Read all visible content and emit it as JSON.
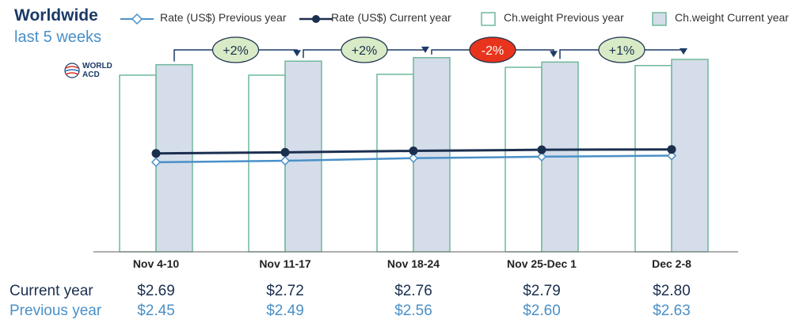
{
  "header": {
    "title": "Worldwide",
    "subtitle": "last 5 weeks",
    "logo_text_line1": "WORLD",
    "logo_text_line2": "ACD"
  },
  "legend": {
    "rate_prev": "Rate (US$) Previous year",
    "rate_cur": "Rate (US$) Current year",
    "weight_prev": "Ch.weight Previous year",
    "weight_cur": "Ch.weight Current year"
  },
  "table": {
    "current_label": "Current year",
    "previous_label": "Previous year",
    "current_values": [
      "$2.69",
      "$2.72",
      "$2.76",
      "$2.79",
      "$2.80"
    ],
    "previous_values": [
      "$2.45",
      "$2.49",
      "$2.56",
      "$2.60",
      "$2.63"
    ]
  },
  "colors": {
    "current_line": "#1b2f4f",
    "previous_line": "#4a90c8",
    "bar_prev_fill": "#ffffff",
    "bar_prev_stroke": "#6fb89a",
    "bar_cur_fill": "#d4dde9",
    "bar_cur_stroke": "#6fb89a",
    "badge_green": "#d8ebc6",
    "badge_red": "#e8341c",
    "arrow": "#1b3a66"
  },
  "chart_data": {
    "type": "bar",
    "categories": [
      "Nov 4-10",
      "Nov 11-17",
      "Nov 18-24",
      "Nov 25-Dec 1",
      "Dec 2-8"
    ],
    "series": [
      {
        "name": "Ch.weight Previous year",
        "kind": "bar",
        "values": [
          202,
          202,
          203,
          211,
          213
        ]
      },
      {
        "name": "Ch.weight Current year",
        "kind": "bar",
        "values": [
          214,
          218,
          222,
          217,
          220
        ]
      },
      {
        "name": "Rate (US$) Current year",
        "kind": "line",
        "values": [
          2.69,
          2.72,
          2.76,
          2.79,
          2.8
        ]
      },
      {
        "name": "Rate (US$) Previous year",
        "kind": "line",
        "values": [
          2.45,
          2.49,
          2.56,
          2.6,
          2.63
        ]
      }
    ],
    "changes": [
      "+2%",
      "+2%",
      "-2%",
      "+1%"
    ],
    "change_colors": [
      "green",
      "green",
      "red",
      "green"
    ],
    "rate_ylim": [
      0,
      5.5
    ],
    "weight_ylim": [
      0,
      230
    ],
    "legend_position": "top"
  }
}
